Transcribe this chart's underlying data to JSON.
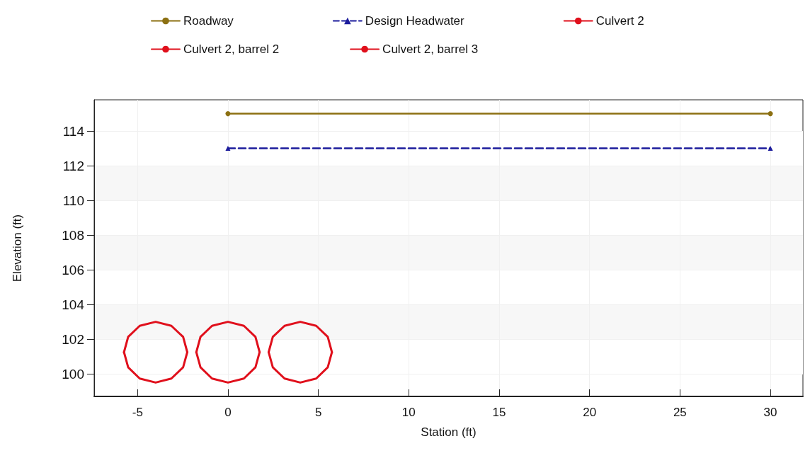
{
  "chart_data": {
    "type": "line",
    "xlabel": "Station (ft)",
    "ylabel": "Elevation (ft)",
    "xlim": [
      -7.4,
      31.8
    ],
    "ylim": [
      98.7,
      115.8
    ],
    "xticks": [
      -5,
      0,
      5,
      10,
      15,
      20,
      25,
      30
    ],
    "yticks": [
      100,
      102,
      104,
      106,
      108,
      110,
      112,
      114
    ],
    "grid": true,
    "legend": "top",
    "series": [
      {
        "name": "Roadway",
        "color": "#8c7012",
        "marker": "circle",
        "line_style": "solid",
        "x": [
          0,
          30
        ],
        "values": [
          115,
          115
        ]
      },
      {
        "name": "Design Headwater",
        "color": "#1c1c9c",
        "marker": "triangle",
        "line_style": "dashed",
        "x": [
          0,
          30
        ],
        "values": [
          113,
          113
        ]
      },
      {
        "name": "Culvert 2",
        "color": "#e0101c",
        "line_style": "solid",
        "x": [
          -5.75,
          -5.52,
          -4.88,
          -4,
          -3.13,
          -2.48,
          -2.25
        ],
        "values": [
          101.25,
          102.13,
          102.77,
          103,
          102.77,
          102.13,
          101.25
        ]
      },
      {
        "color": "#e0101c",
        "line_style": "solid",
        "x": [
          -5.75,
          -5.52,
          -4.88,
          -4,
          -3.13,
          -2.48,
          -2.25
        ],
        "values": [
          101.25,
          100.38,
          99.73,
          99.5,
          99.73,
          100.38,
          101.25
        ]
      },
      {
        "name": "Culvert 2, barrel 2",
        "color": "#e0101c",
        "line_style": "solid",
        "x": [
          -1.75,
          -1.52,
          -0.88,
          0,
          0.88,
          1.52,
          1.75
        ],
        "values": [
          101.25,
          102.13,
          102.77,
          103,
          102.77,
          102.13,
          101.25
        ]
      },
      {
        "color": "#e0101c",
        "line_style": "solid",
        "x": [
          -1.75,
          -1.52,
          -0.88,
          0,
          0.88,
          1.52,
          1.75
        ],
        "values": [
          101.25,
          100.38,
          99.73,
          99.5,
          99.73,
          100.38,
          101.25
        ]
      },
      {
        "name": "Culvert 2, barrel 3",
        "color": "#e0101c",
        "line_style": "solid",
        "x": [
          2.25,
          2.48,
          3.13,
          4,
          4.88,
          5.52,
          5.75
        ],
        "values": [
          101.25,
          102.13,
          102.77,
          103,
          102.77,
          102.13,
          101.25
        ]
      },
      {
        "color": "#e0101c",
        "line_style": "solid",
        "x": [
          2.25,
          2.48,
          3.13,
          4,
          4.88,
          5.52,
          5.75
        ],
        "values": [
          101.25,
          100.38,
          99.73,
          99.5,
          99.73,
          100.38,
          101.25
        ]
      }
    ]
  }
}
